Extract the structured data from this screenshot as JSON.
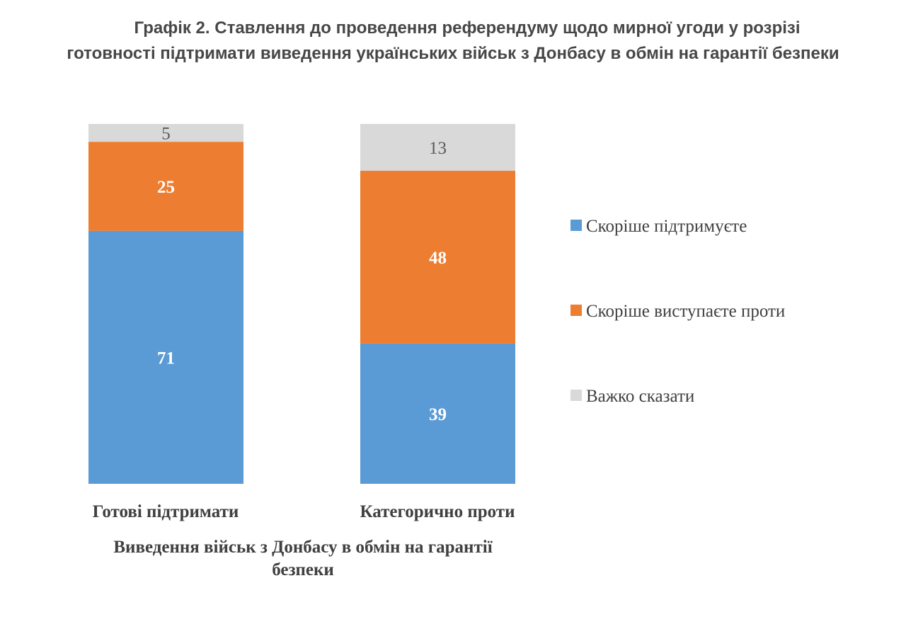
{
  "chart_data": {
    "type": "bar",
    "stacked": true,
    "normalized": true,
    "title_lines": [
      "Графік 2. Ставлення до проведення референдуму щодо мирної угоди у розрізі",
      "готовності підтримати виведення українських військ з Донбасу в обмін на гарантії безпеки"
    ],
    "categories": [
      "Готові підтримати",
      "Категорично проти"
    ],
    "xlabel_lines": [
      "Виведення військ з Донбасу в обмін на гарантії",
      "безпеки"
    ],
    "ylabel": "",
    "series": [
      {
        "name": "Скоріше підтримуєте",
        "values": [
          71,
          39
        ],
        "color": "#5B9BD5",
        "label_color": "#FFFFFF"
      },
      {
        "name": "Скоріше виступаєте проти",
        "values": [
          25,
          48
        ],
        "color": "#ED7D31",
        "label_color": "#FFFFFF"
      },
      {
        "name": "Важко сказати",
        "values": [
          5,
          13
        ],
        "color": "#D9D9D9",
        "label_color": "#595959"
      }
    ],
    "legend_position": "right",
    "grid": false
  }
}
